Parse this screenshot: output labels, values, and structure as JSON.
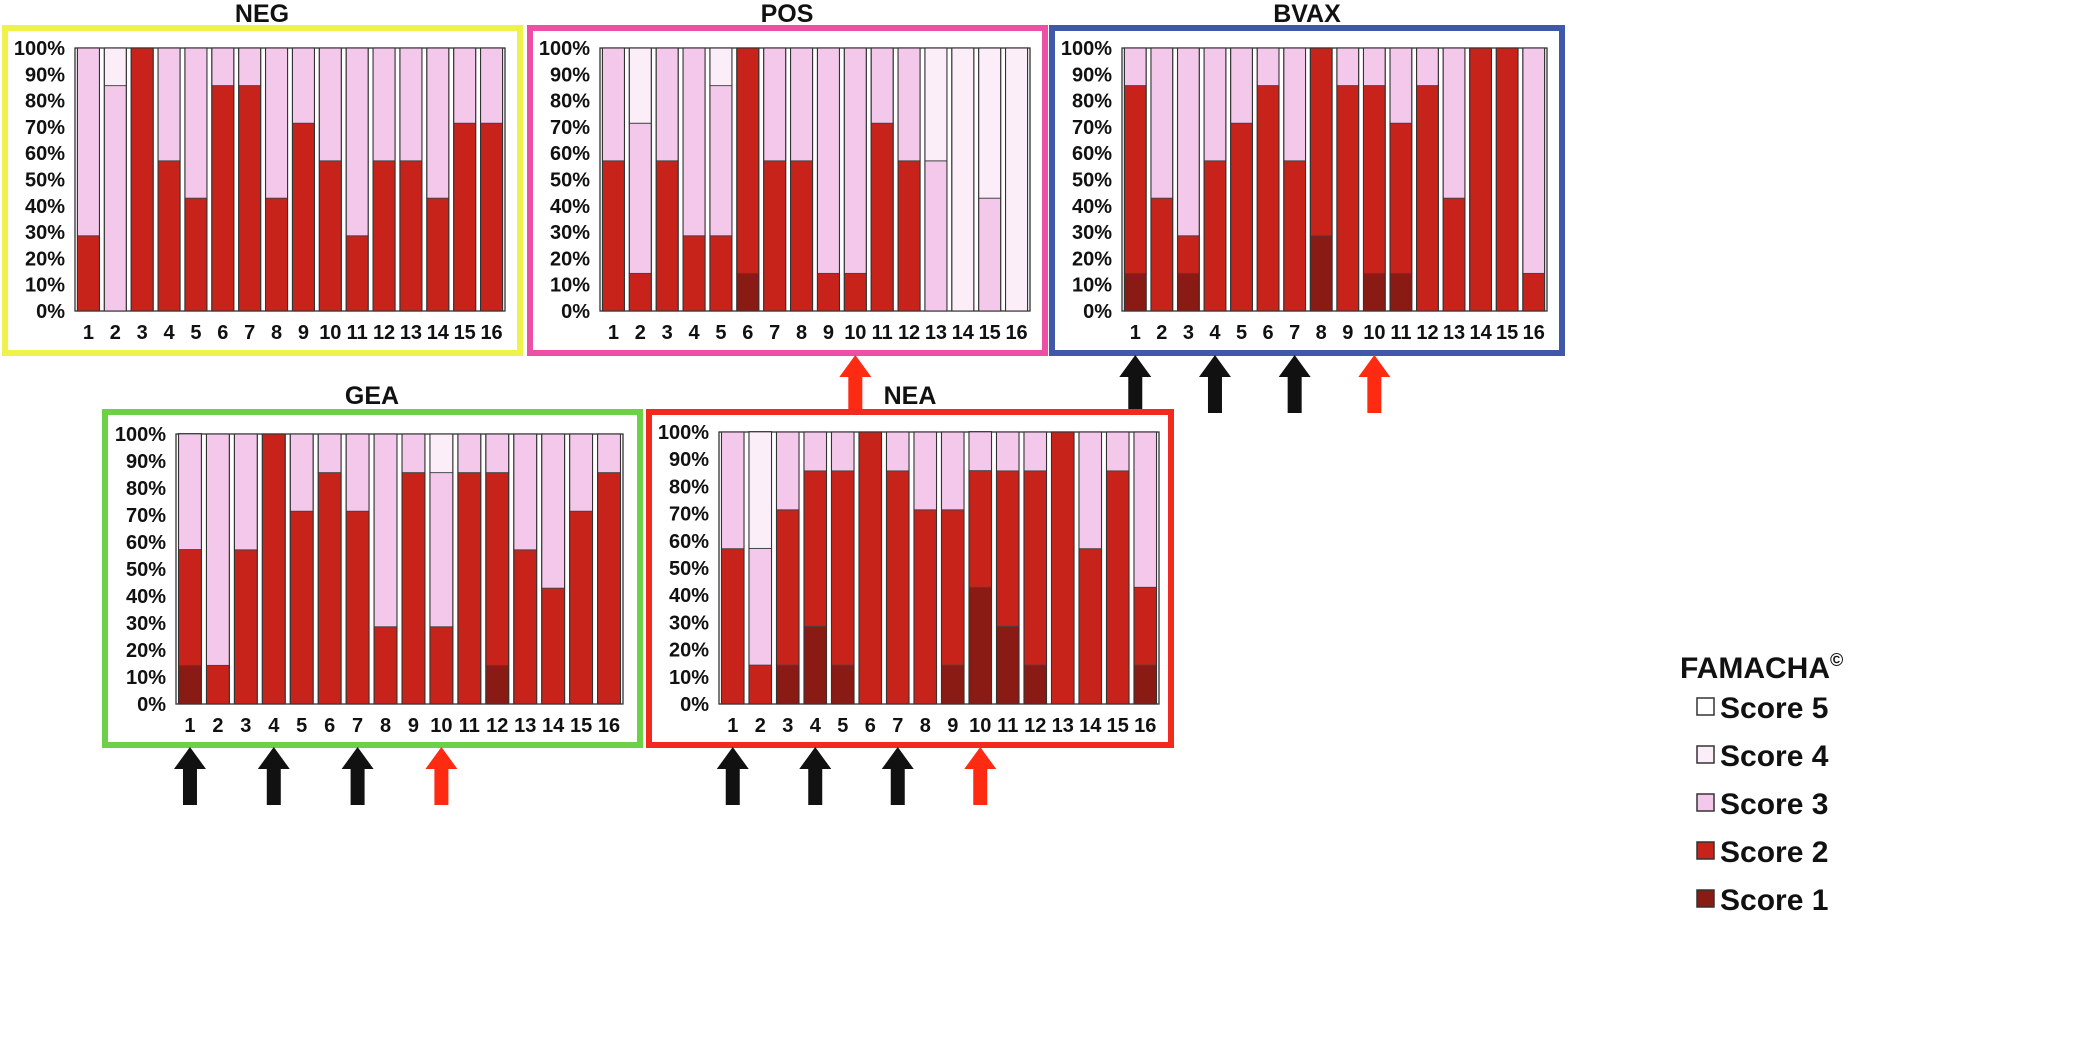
{
  "legend": {
    "title": "FAMACHA",
    "title_mark": "©",
    "items": [
      {
        "label": "Score 5",
        "key": "s5"
      },
      {
        "label": "Score 4",
        "key": "s4"
      },
      {
        "label": "Score 3",
        "key": "s3"
      },
      {
        "label": "Score 2",
        "key": "s2"
      },
      {
        "label": "Score 1",
        "key": "s1"
      }
    ]
  },
  "colors": {
    "s1": "#8a1a14",
    "s2": "#c8231a",
    "s3": "#f3c8ea",
    "s4": "#fbeef8",
    "s5": "#ffffff",
    "arrow_black": "#111111",
    "arrow_red": "#ff2a12",
    "frames": {
      "NEG": "#eef24a",
      "POS": "#ec4fa4",
      "BVAX": "#3f58a9",
      "GEA": "#6cd147",
      "NEA": "#f12a1d"
    }
  },
  "chart_data": [
    {
      "type": "bar",
      "stacked": true,
      "title": "NEG",
      "categories": [
        "1",
        "2",
        "3",
        "4",
        "5",
        "6",
        "7",
        "8",
        "9",
        "10",
        "11",
        "12",
        "13",
        "14",
        "15",
        "16"
      ],
      "yticks": [
        "0%",
        "10%",
        "20%",
        "30%",
        "40%",
        "50%",
        "60%",
        "70%",
        "80%",
        "90%",
        "100%"
      ],
      "ylim": [
        0,
        100
      ],
      "series": [
        {
          "name": "Score 1",
          "values": [
            0,
            0,
            0,
            0,
            0,
            0,
            0,
            0,
            0,
            0,
            0,
            0,
            0,
            0,
            0,
            0
          ]
        },
        {
          "name": "Score 2",
          "values": [
            28.6,
            0,
            100,
            57.1,
            42.9,
            85.7,
            85.7,
            42.9,
            71.4,
            57.1,
            28.6,
            57.1,
            57.1,
            42.9,
            71.4,
            71.4
          ]
        },
        {
          "name": "Score 3",
          "values": [
            71.4,
            85.7,
            0,
            42.9,
            57.1,
            14.3,
            14.3,
            57.1,
            28.6,
            42.9,
            71.4,
            42.9,
            42.9,
            57.1,
            28.6,
            28.6
          ]
        },
        {
          "name": "Score 4",
          "values": [
            0,
            14.3,
            0,
            0,
            0,
            0,
            0,
            0,
            0,
            0,
            0,
            0,
            0,
            0,
            0,
            0
          ]
        },
        {
          "name": "Score 5",
          "values": [
            0,
            0,
            0,
            0,
            0,
            0,
            0,
            0,
            0,
            0,
            0,
            0,
            0,
            0,
            0,
            0
          ]
        }
      ],
      "arrows": []
    },
    {
      "type": "bar",
      "stacked": true,
      "title": "POS",
      "categories": [
        "1",
        "2",
        "3",
        "4",
        "5",
        "6",
        "7",
        "8",
        "9",
        "10",
        "11",
        "12",
        "13",
        "14",
        "15",
        "16"
      ],
      "yticks": [
        "0%",
        "10%",
        "20%",
        "30%",
        "40%",
        "50%",
        "60%",
        "70%",
        "80%",
        "90%",
        "100%"
      ],
      "ylim": [
        0,
        100
      ],
      "series": [
        {
          "name": "Score 1",
          "values": [
            0,
            0,
            0,
            0,
            0,
            14.3,
            0,
            0,
            0,
            0,
            0,
            0,
            0,
            0,
            0,
            0
          ]
        },
        {
          "name": "Score 2",
          "values": [
            57.1,
            14.3,
            57.1,
            28.6,
            28.6,
            85.7,
            57.1,
            57.1,
            14.3,
            14.3,
            71.4,
            57.1,
            0,
            0,
            0,
            0
          ]
        },
        {
          "name": "Score 3",
          "values": [
            42.9,
            57.1,
            42.9,
            71.4,
            57.1,
            0,
            42.9,
            42.9,
            85.7,
            85.7,
            28.6,
            42.9,
            57.1,
            0,
            42.9,
            0
          ]
        },
        {
          "name": "Score 4",
          "values": [
            0,
            28.6,
            0,
            0,
            14.3,
            0,
            0,
            0,
            0,
            0,
            0,
            0,
            42.9,
            100,
            57.1,
            100
          ]
        },
        {
          "name": "Score 5",
          "values": [
            0,
            0,
            0,
            0,
            0,
            0,
            0,
            0,
            0,
            0,
            0,
            0,
            0,
            0,
            0,
            0
          ]
        }
      ],
      "arrows": [
        {
          "category": "10",
          "color": "red"
        }
      ]
    },
    {
      "type": "bar",
      "stacked": true,
      "title": "BVAX",
      "categories": [
        "1",
        "2",
        "3",
        "4",
        "5",
        "6",
        "7",
        "8",
        "9",
        "10",
        "11",
        "12",
        "13",
        "14",
        "15",
        "16"
      ],
      "yticks": [
        "0%",
        "10%",
        "20%",
        "30%",
        "40%",
        "50%",
        "60%",
        "70%",
        "80%",
        "90%",
        "100%"
      ],
      "ylim": [
        0,
        100
      ],
      "series": [
        {
          "name": "Score 1",
          "values": [
            14.3,
            0,
            14.3,
            0,
            0,
            0,
            0,
            28.6,
            0,
            14.3,
            14.3,
            0,
            0,
            0,
            0,
            0
          ]
        },
        {
          "name": "Score 2",
          "values": [
            71.4,
            42.9,
            14.3,
            57.1,
            71.4,
            85.7,
            57.1,
            71.4,
            85.7,
            71.4,
            57.1,
            85.7,
            42.9,
            100,
            100,
            14.3
          ]
        },
        {
          "name": "Score 3",
          "values": [
            14.3,
            57.1,
            71.4,
            42.9,
            28.6,
            14.3,
            42.9,
            0,
            14.3,
            14.3,
            28.6,
            14.3,
            57.1,
            0,
            0,
            85.7
          ]
        },
        {
          "name": "Score 4",
          "values": [
            0,
            0,
            0,
            0,
            0,
            0,
            0,
            0,
            0,
            0,
            0,
            0,
            0,
            0,
            0,
            0
          ]
        },
        {
          "name": "Score 5",
          "values": [
            0,
            0,
            0,
            0,
            0,
            0,
            0,
            0,
            0,
            0,
            0,
            0,
            0,
            0,
            0,
            0
          ]
        }
      ],
      "arrows": [
        {
          "category": "1",
          "color": "black"
        },
        {
          "category": "4",
          "color": "black"
        },
        {
          "category": "7",
          "color": "black"
        },
        {
          "category": "10",
          "color": "red"
        }
      ]
    },
    {
      "type": "bar",
      "stacked": true,
      "title": "GEA",
      "categories": [
        "1",
        "2",
        "3",
        "4",
        "5",
        "6",
        "7",
        "8",
        "9",
        "10",
        "11",
        "12",
        "13",
        "14",
        "15",
        "16"
      ],
      "yticks": [
        "0%",
        "10%",
        "20%",
        "30%",
        "40%",
        "50%",
        "60%",
        "70%",
        "80%",
        "90%",
        "100%"
      ],
      "ylim": [
        0,
        100
      ],
      "series": [
        {
          "name": "Score 1",
          "values": [
            14.3,
            0,
            0,
            0,
            0,
            0,
            0,
            0,
            0,
            0,
            0,
            14.3,
            0,
            0,
            0,
            0
          ]
        },
        {
          "name": "Score 2",
          "values": [
            42.9,
            14.3,
            57.1,
            100,
            71.4,
            85.7,
            71.4,
            28.6,
            85.7,
            28.6,
            85.7,
            71.4,
            57.1,
            42.9,
            71.4,
            85.7
          ]
        },
        {
          "name": "Score 3",
          "values": [
            42.9,
            85.7,
            42.9,
            0,
            28.6,
            14.3,
            28.6,
            71.4,
            14.3,
            57.1,
            14.3,
            14.3,
            42.9,
            57.1,
            28.6,
            14.3
          ]
        },
        {
          "name": "Score 4",
          "values": [
            0,
            0,
            0,
            0,
            0,
            0,
            0,
            0,
            0,
            14.3,
            0,
            0,
            0,
            0,
            0,
            0
          ]
        },
        {
          "name": "Score 5",
          "values": [
            0,
            0,
            0,
            0,
            0,
            0,
            0,
            0,
            0,
            0,
            0,
            0,
            0,
            0,
            0,
            0
          ]
        }
      ],
      "arrows": [
        {
          "category": "1",
          "color": "black"
        },
        {
          "category": "4",
          "color": "black"
        },
        {
          "category": "7",
          "color": "black"
        },
        {
          "category": "10",
          "color": "red"
        }
      ]
    },
    {
      "type": "bar",
      "stacked": true,
      "title": "NEA",
      "categories": [
        "1",
        "2",
        "3",
        "4",
        "5",
        "6",
        "7",
        "8",
        "9",
        "10",
        "11",
        "12",
        "13",
        "14",
        "15",
        "16"
      ],
      "yticks": [
        "0%",
        "10%",
        "20%",
        "30%",
        "40%",
        "50%",
        "60%",
        "70%",
        "80%",
        "90%",
        "100%"
      ],
      "ylim": [
        0,
        100
      ],
      "series": [
        {
          "name": "Score 1",
          "values": [
            0,
            0,
            14.3,
            28.6,
            14.3,
            0,
            0,
            0,
            14.3,
            42.9,
            28.6,
            14.3,
            0,
            0,
            0,
            14.3
          ]
        },
        {
          "name": "Score 2",
          "values": [
            57.1,
            14.3,
            57.1,
            57.1,
            71.4,
            100,
            85.7,
            71.4,
            57.1,
            42.9,
            57.1,
            71.4,
            100,
            57.1,
            85.7,
            28.6
          ]
        },
        {
          "name": "Score 3",
          "values": [
            42.9,
            42.9,
            28.6,
            14.3,
            14.3,
            0,
            14.3,
            28.6,
            28.6,
            14.3,
            14.3,
            14.3,
            0,
            42.9,
            14.3,
            57.1
          ]
        },
        {
          "name": "Score 4",
          "values": [
            0,
            42.9,
            0,
            0,
            0,
            0,
            0,
            0,
            0,
            0,
            0,
            0,
            0,
            0,
            0,
            0
          ]
        },
        {
          "name": "Score 5",
          "values": [
            0,
            0,
            0,
            0,
            0,
            0,
            0,
            0,
            0,
            0,
            0,
            0,
            0,
            0,
            0,
            0
          ]
        }
      ],
      "arrows": [
        {
          "category": "1",
          "color": "black"
        },
        {
          "category": "4",
          "color": "black"
        },
        {
          "category": "7",
          "color": "black"
        },
        {
          "category": "10",
          "color": "red"
        }
      ]
    }
  ]
}
